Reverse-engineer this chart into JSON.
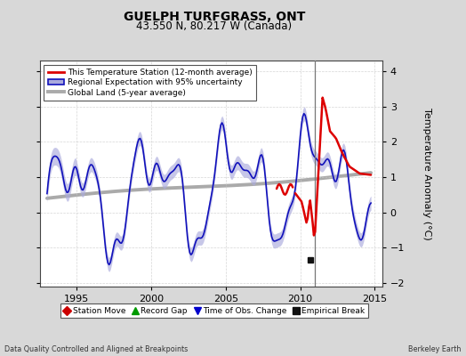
{
  "title": "GUELPH TURFGRASS, ONT",
  "subtitle": "43.550 N, 80.217 W (Canada)",
  "ylabel": "Temperature Anomaly (°C)",
  "xlabel_left": "Data Quality Controlled and Aligned at Breakpoints",
  "xlabel_right": "Berkeley Earth",
  "xlim": [
    1992.5,
    2015.5
  ],
  "ylim": [
    -2.1,
    4.3
  ],
  "yticks": [
    -2,
    -1,
    0,
    1,
    2,
    3,
    4
  ],
  "xticks": [
    1995,
    2000,
    2005,
    2010,
    2015
  ],
  "bg_color": "#d8d8d8",
  "plot_bg_color": "#ffffff",
  "vertical_line_x": 2011.0,
  "empirical_break_x": 2010.67,
  "empirical_break_y": -1.35,
  "legend1_entries": [
    {
      "label": "This Temperature Station (12-month average)",
      "color": "#dd0000",
      "lw": 2.0
    },
    {
      "label": "Regional Expectation with 95% uncertainty",
      "color": "#2222bb",
      "lw": 1.5,
      "fill": "#aaaadd"
    },
    {
      "label": "Global Land (5-year average)",
      "color": "#aaaaaa",
      "lw": 3.0
    }
  ],
  "legend2_entries": [
    {
      "label": "Station Move",
      "color": "#cc0000",
      "marker": "D"
    },
    {
      "label": "Record Gap",
      "color": "#009900",
      "marker": "^"
    },
    {
      "label": "Time of Obs. Change",
      "color": "#0000cc",
      "marker": "v"
    },
    {
      "label": "Empirical Break",
      "color": "#111111",
      "marker": "s"
    }
  ]
}
